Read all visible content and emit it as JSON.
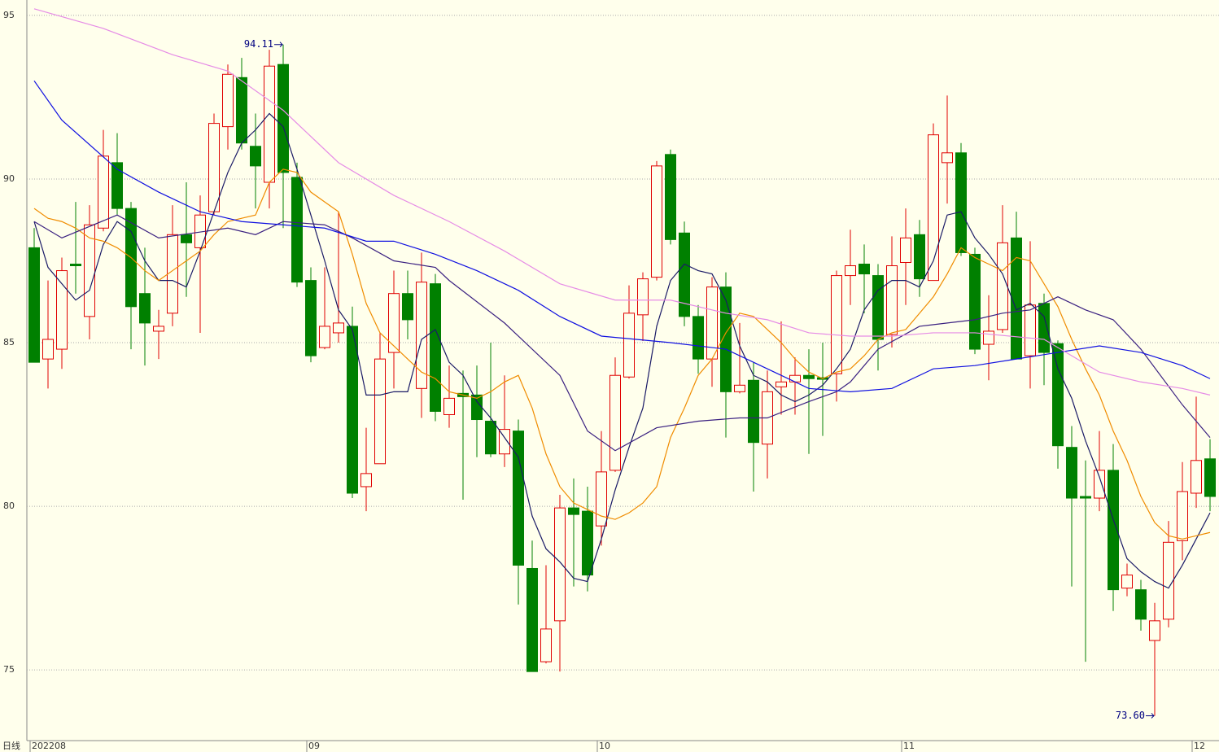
{
  "chart_data": {
    "type": "candlestick",
    "period_label": "日线",
    "categories": [
      "202208",
      null,
      null,
      null,
      null,
      null,
      null,
      null,
      null,
      null,
      null,
      null,
      null,
      null,
      null,
      null,
      null,
      null,
      null,
      null,
      "09",
      null,
      null,
      null,
      null,
      null,
      null,
      null,
      null,
      null,
      null,
      null,
      null,
      null,
      null,
      null,
      null,
      null,
      null,
      null,
      null,
      "10",
      null,
      null,
      null,
      null,
      null,
      null,
      null,
      null,
      null,
      null,
      null,
      null,
      null,
      null,
      null,
      null,
      null,
      null,
      null,
      null,
      null,
      "11",
      null,
      null,
      null,
      null,
      null,
      null,
      null,
      null,
      null,
      null,
      null,
      null,
      null,
      null,
      null,
      null,
      null,
      null,
      null,
      null,
      "12",
      null
    ],
    "open": [
      87.9,
      84.5,
      84.8,
      87.4,
      85.8,
      88.5,
      90.5,
      89.1,
      86.5,
      85.35,
      85.9,
      88.3,
      87.9,
      89.0,
      91.6,
      93.1,
      91.0,
      89.9,
      93.5,
      90.05,
      86.9,
      84.85,
      85.3,
      85.5,
      80.6,
      81.3,
      84.7,
      86.5,
      83.6,
      86.8,
      82.8,
      83.45,
      83.4,
      82.6,
      81.6,
      82.3,
      78.1,
      75.25,
      76.5,
      79.95,
      79.85,
      79.4,
      81.1,
      83.95,
      85.85,
      87.0,
      90.75,
      88.35,
      85.8,
      84.5,
      86.7,
      83.5,
      83.85,
      81.9,
      83.65,
      83.8,
      84.0,
      83.93,
      84.05,
      87.05,
      87.4,
      87.05,
      85.25,
      87.45,
      88.3,
      86.9,
      90.5,
      90.8,
      87.7,
      84.95,
      85.4,
      88.2,
      84.6,
      86.2,
      84.97,
      81.8,
      80.3,
      80.25,
      81.1,
      77.5,
      77.45,
      75.9,
      76.55,
      78.95,
      80.4,
      81.45
    ],
    "high": [
      88.5,
      86.9,
      87.6,
      89.3,
      89.2,
      91.5,
      91.4,
      89.3,
      87.9,
      86.0,
      89.2,
      89.9,
      89.5,
      92.0,
      93.5,
      93.7,
      92.0,
      93.95,
      94.11,
      90.5,
      87.3,
      87.3,
      89.0,
      86.1,
      82.4,
      85.3,
      87.2,
      87.2,
      87.75,
      87.1,
      84.3,
      84.15,
      84.3,
      85.0,
      84.0,
      82.65,
      78.95,
      78.2,
      80.35,
      80.85,
      80.6,
      82.3,
      84.55,
      86.75,
      87.15,
      90.55,
      90.9,
      88.7,
      86.15,
      87.0,
      87.15,
      85.6,
      84.4,
      84.15,
      85.65,
      84.55,
      84.8,
      85.0,
      87.2,
      88.45,
      88.0,
      87.4,
      88.25,
      89.1,
      88.75,
      91.7,
      92.55,
      91.1,
      87.9,
      86.45,
      89.2,
      89.0,
      88.1,
      86.5,
      85.07,
      82.45,
      81.4,
      82.3,
      81.9,
      78.25,
      77.75,
      77.05,
      79.55,
      81.35,
      83.35,
      82.05
    ],
    "low": [
      84.4,
      83.6,
      84.2,
      86.5,
      85.1,
      88.4,
      88.9,
      84.8,
      84.3,
      84.5,
      85.5,
      86.4,
      85.3,
      88.9,
      90.9,
      90.9,
      89.1,
      89.1,
      88.5,
      86.7,
      84.4,
      84.8,
      85.0,
      80.25,
      79.85,
      81.3,
      83.6,
      85.1,
      82.7,
      82.6,
      82.4,
      80.2,
      81.5,
      81.5,
      81.2,
      77.0,
      74.95,
      75.2,
      74.95,
      77.55,
      77.4,
      78.8,
      81.05,
      83.9,
      85.05,
      86.9,
      88.0,
      85.5,
      84.05,
      83.65,
      82.1,
      83.45,
      80.45,
      80.85,
      82.8,
      82.8,
      81.6,
      82.15,
      83.2,
      86.15,
      85.9,
      84.15,
      84.85,
      86.15,
      86.4,
      86.9,
      89.25,
      87.65,
      84.65,
      83.85,
      85.3,
      84.5,
      83.6,
      83.7,
      81.15,
      77.55,
      75.25,
      79.85,
      76.8,
      77.25,
      76.2,
      73.6,
      76.3,
      78.35,
      79.95,
      79.85
    ],
    "close": [
      84.4,
      85.1,
      87.2,
      87.35,
      88.6,
      90.7,
      89.1,
      86.1,
      85.6,
      85.5,
      88.3,
      88.05,
      88.9,
      91.7,
      93.2,
      91.1,
      90.4,
      93.45,
      90.2,
      86.85,
      84.6,
      85.5,
      85.6,
      80.4,
      81.0,
      84.5,
      86.5,
      85.7,
      86.85,
      82.9,
      83.3,
      83.35,
      82.65,
      81.6,
      82.35,
      78.2,
      74.95,
      76.25,
      79.95,
      79.75,
      77.9,
      81.05,
      84.0,
      85.9,
      86.95,
      90.4,
      88.15,
      85.8,
      84.5,
      86.7,
      83.5,
      83.7,
      81.95,
      83.5,
      83.8,
      84.0,
      83.9,
      83.88,
      87.05,
      87.35,
      87.1,
      85.1,
      87.35,
      88.2,
      86.95,
      91.35,
      90.8,
      87.75,
      84.8,
      85.35,
      88.05,
      84.5,
      86.15,
      84.7,
      81.85,
      80.25,
      80.25,
      81.1,
      77.45,
      77.9,
      76.55,
      76.5,
      78.9,
      80.45,
      81.4,
      80.3
    ],
    "up_color": "#e00000",
    "down_color": "#008000",
    "series": [
      {
        "color": "#1a1a66",
        "x": [
          0,
          1,
          2,
          3,
          4,
          5,
          6,
          7,
          8,
          9,
          10,
          11,
          12,
          13,
          14,
          15,
          16,
          17,
          18,
          19,
          20,
          21,
          22,
          23,
          24,
          25,
          26,
          27,
          28,
          29,
          30,
          31,
          32,
          33,
          34,
          35,
          36,
          37,
          38,
          39,
          40,
          41,
          42,
          43,
          44,
          45,
          46,
          47,
          48,
          49,
          50,
          51,
          52,
          53,
          54,
          55,
          56,
          57,
          58,
          59,
          60,
          61,
          62,
          63,
          64,
          65,
          66,
          67,
          68,
          69,
          70,
          71,
          72,
          73,
          74,
          75,
          76,
          77,
          78,
          79,
          80,
          81,
          82,
          83,
          84,
          85
        ],
        "values": [
          88.7,
          87.3,
          86.8,
          86.3,
          86.6,
          88.0,
          88.7,
          88.4,
          87.5,
          86.9,
          86.9,
          86.7,
          87.8,
          89.0,
          90.2,
          91.1,
          91.5,
          92.0,
          91.6,
          90.3,
          88.9,
          87.5,
          86.0,
          85.4,
          83.4,
          83.4,
          83.5,
          83.5,
          85.1,
          85.4,
          84.4,
          84.0,
          83.2,
          82.7,
          82.1,
          81.5,
          79.7,
          78.7,
          78.3,
          77.8,
          77.7,
          79.0,
          80.5,
          81.8,
          83.0,
          85.5,
          86.9,
          87.4,
          87.2,
          87.1,
          86.3,
          84.9,
          84.0,
          83.8,
          83.4,
          83.2,
          83.4,
          83.7,
          84.2,
          84.8,
          86.0,
          86.6,
          86.9,
          86.9,
          86.7,
          87.5,
          88.9,
          89.0,
          88.2,
          87.7,
          87.1,
          86.0,
          86.2,
          85.8,
          84.2,
          83.3,
          82.0,
          80.9,
          79.6,
          78.4,
          78.0,
          77.7,
          77.5,
          78.2,
          79.0,
          79.8
        ]
      },
      {
        "color": "#f08c00",
        "x": [
          0,
          1,
          2,
          3,
          4,
          5,
          6,
          7,
          8,
          9,
          10,
          11,
          12,
          13,
          14,
          15,
          16,
          17,
          18,
          19,
          20,
          21,
          22,
          23,
          24,
          25,
          26,
          27,
          28,
          29,
          30,
          31,
          32,
          33,
          34,
          35,
          36,
          37,
          38,
          39,
          40,
          41,
          42,
          43,
          44,
          45,
          46,
          47,
          48,
          49,
          50,
          51,
          52,
          53,
          54,
          55,
          56,
          57,
          58,
          59,
          60,
          61,
          62,
          63,
          64,
          65,
          66,
          67,
          68,
          69,
          70,
          71,
          72,
          73,
          74,
          75,
          76,
          77,
          78,
          79,
          80,
          81,
          82,
          83,
          84,
          85
        ],
        "values": [
          89.1,
          88.8,
          88.7,
          88.5,
          88.2,
          88.1,
          87.9,
          87.6,
          87.2,
          86.9,
          87.2,
          87.5,
          87.8,
          88.3,
          88.7,
          88.8,
          88.9,
          89.9,
          90.3,
          90.2,
          89.6,
          89.3,
          89.0,
          87.7,
          86.2,
          85.3,
          84.9,
          84.5,
          84.1,
          83.9,
          83.5,
          83.4,
          83.3,
          83.5,
          83.8,
          84.0,
          83.0,
          81.6,
          80.6,
          80.1,
          79.9,
          79.7,
          79.6,
          79.8,
          80.1,
          80.6,
          82.1,
          83.0,
          84.0,
          84.5,
          85.3,
          85.9,
          85.8,
          85.4,
          85.0,
          84.5,
          84.1,
          83.9,
          84.1,
          84.2,
          84.6,
          85.1,
          85.3,
          85.4,
          85.9,
          86.4,
          87.1,
          87.9,
          87.6,
          87.4,
          87.2,
          87.6,
          87.5,
          86.8,
          86.1,
          85.1,
          84.2,
          83.4,
          82.3,
          81.4,
          80.3,
          79.5,
          79.1,
          79.0,
          79.1,
          79.2
        ]
      },
      {
        "color": "#3a2080",
        "x": [
          0,
          2,
          6,
          9,
          14,
          16,
          18,
          21,
          23,
          26,
          29,
          30,
          34,
          38,
          40,
          42,
          45,
          48,
          51,
          53,
          56,
          58,
          59,
          61,
          64,
          68,
          70,
          72,
          74,
          76,
          78,
          80,
          83,
          85
        ],
        "values": [
          88.7,
          88.2,
          88.9,
          88.2,
          88.5,
          88.3,
          88.7,
          88.6,
          88.2,
          87.5,
          87.3,
          86.9,
          85.6,
          84.0,
          82.3,
          81.7,
          82.4,
          82.6,
          82.7,
          82.7,
          83.2,
          83.5,
          83.8,
          84.8,
          85.5,
          85.7,
          85.9,
          86.0,
          86.4,
          86.0,
          85.7,
          84.8,
          83.1,
          82.1
        ]
      },
      {
        "color": "#1010e0",
        "x": [
          0,
          2,
          6,
          9,
          12,
          15,
          18,
          21,
          24,
          26,
          29,
          32,
          35,
          38,
          41,
          46,
          50,
          53,
          56,
          59,
          62,
          65,
          68,
          71,
          74,
          77,
          80,
          83,
          85
        ],
        "values": [
          93.0,
          91.8,
          90.3,
          89.6,
          89.0,
          88.7,
          88.6,
          88.5,
          88.1,
          88.1,
          87.7,
          87.2,
          86.6,
          85.8,
          85.2,
          85.0,
          84.8,
          84.2,
          83.6,
          83.5,
          83.6,
          84.2,
          84.3,
          84.5,
          84.7,
          84.9,
          84.7,
          84.3,
          83.9
        ]
      },
      {
        "color": "#e68ce6",
        "x": [
          0,
          5,
          10,
          14,
          18,
          22,
          26,
          30,
          34,
          38,
          42,
          46,
          50,
          53,
          56,
          59,
          62,
          65,
          68,
          73,
          75,
          77,
          80,
          83,
          85
        ],
        "values": [
          95.2,
          94.6,
          93.8,
          93.3,
          92.1,
          90.5,
          89.5,
          88.7,
          87.8,
          86.8,
          86.3,
          86.3,
          85.9,
          85.7,
          85.3,
          85.2,
          85.2,
          85.3,
          85.3,
          85.1,
          84.6,
          84.1,
          83.8,
          83.6,
          83.4
        ]
      }
    ],
    "ylim": [
      72.84,
      95.47
    ],
    "yticks": [
      75,
      80,
      85,
      90,
      95
    ],
    "grid": true,
    "annotations": [
      {
        "label": "94.11",
        "value": 94.11,
        "field": "high"
      },
      {
        "label": "73.60",
        "value": 73.6,
        "field": "low"
      }
    ]
  }
}
